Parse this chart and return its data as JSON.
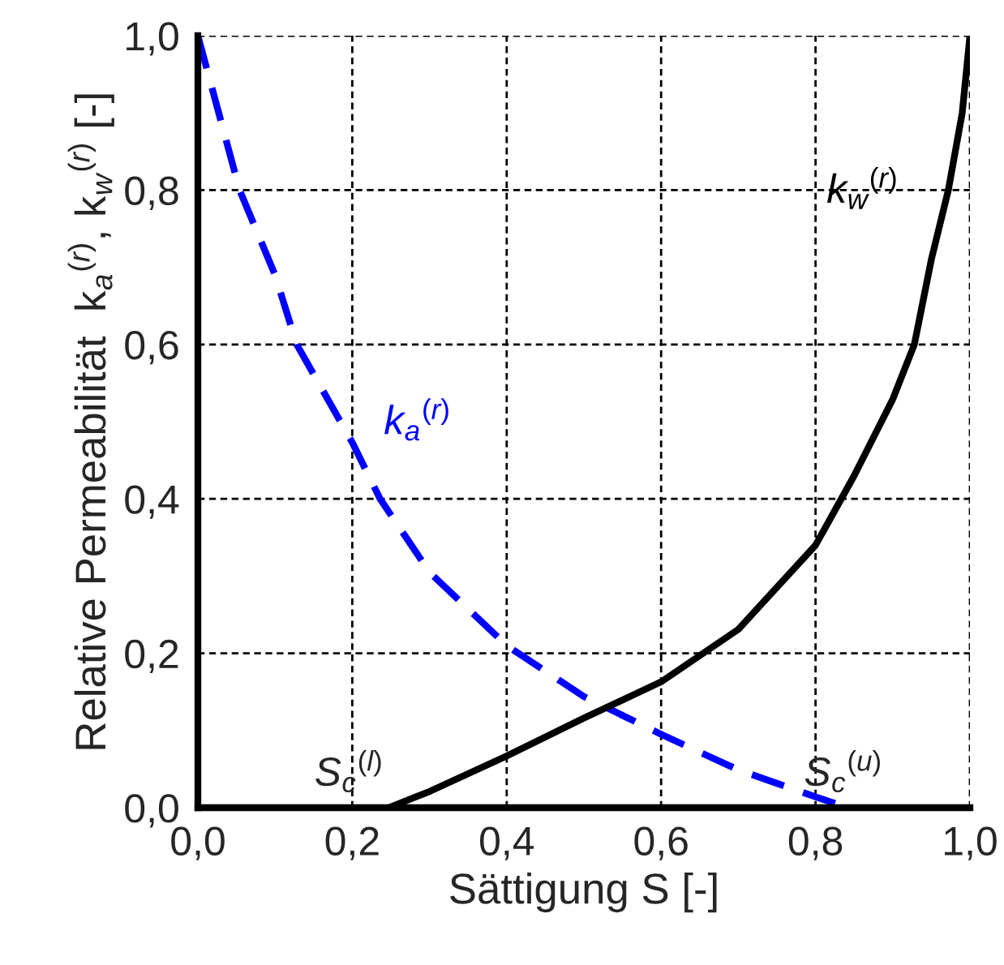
{
  "chart_data": {
    "type": "line",
    "xlabel": "Sättigung S [-]",
    "ylabel": "Relative Permeabilität  k$_{a}$$^{(r)}$, k$_{w}$$^{(r)}$ [-]",
    "xlim": [
      0,
      1
    ],
    "ylim": [
      0,
      1
    ],
    "xticks": [
      {
        "value": 0,
        "label": "0,0"
      },
      {
        "value": 0.2,
        "label": "0,2"
      },
      {
        "value": 0.4,
        "label": "0,4"
      },
      {
        "value": 0.6,
        "label": "0,6"
      },
      {
        "value": 0.8,
        "label": "0,8"
      },
      {
        "value": 1,
        "label": "1,0"
      }
    ],
    "yticks": [
      {
        "value": 0,
        "label": "0,0"
      },
      {
        "value": 0.2,
        "label": "0,2"
      },
      {
        "value": 0.4,
        "label": "0,4"
      },
      {
        "value": 0.6,
        "label": "0,6"
      },
      {
        "value": 0.8,
        "label": "0,8"
      },
      {
        "value": 1,
        "label": "1,0"
      }
    ],
    "grid": true,
    "legend": false,
    "series": [
      {
        "name": "k$_{a}$$^{(r)}$",
        "color": "#0000ff",
        "line_style": "dashed",
        "x": [
          0,
          0.054,
          0.1,
          0.128,
          0.2,
          0.236,
          0.3,
          0.4,
          0.5,
          0.6,
          0.7,
          0.8,
          0.842
        ],
        "values": [
          1.0,
          0.8,
          0.69,
          0.6,
          0.473,
          0.4,
          0.305,
          0.21,
          0.144,
          0.095,
          0.049,
          0.014,
          0
        ]
      },
      {
        "name": "k$_{w}$$^{(r)}$",
        "color": "#000000",
        "line_style": "solid",
        "x": [
          0.247,
          0.3,
          0.4,
          0.5,
          0.6,
          0.7,
          0.8,
          0.85,
          0.9,
          0.928,
          0.95,
          0.972,
          0.99,
          1.0
        ],
        "values": [
          0,
          0.021,
          0.067,
          0.116,
          0.163,
          0.231,
          0.34,
          0.43,
          0.529,
          0.6,
          0.71,
          0.8,
          0.9,
          1.0
        ]
      }
    ],
    "annotations": [
      {
        "text": "S$_{c}$$^{(l)}$",
        "x": 0.247,
        "y": 0
      },
      {
        "text": "S$_{c}$$^{(u)}$",
        "x": 0.842,
        "y": 0
      }
    ]
  }
}
